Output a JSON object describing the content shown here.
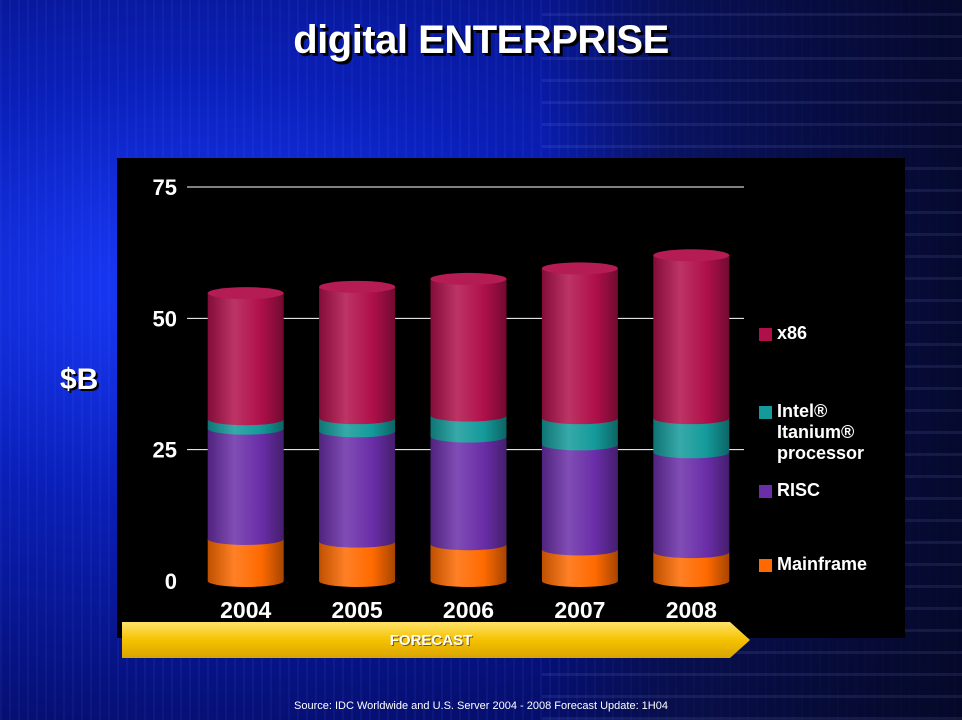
{
  "slide": {
    "title": "digital ENTERPRISE",
    "source": "Source: IDC Worldwide and U.S. Server 2004 - 2008 Forecast Update: 1H04",
    "forecast_label": "FORECAST"
  },
  "chart_data": {
    "type": "bar",
    "stacked": true,
    "ylabel": "$B",
    "ylim": [
      0,
      75
    ],
    "yticks": [
      0,
      25,
      50,
      75
    ],
    "categories": [
      "2004",
      "2005",
      "2006",
      "2007",
      "2008"
    ],
    "series": [
      {
        "name": "Mainframe",
        "color": "#ff6a00",
        "values": [
          8,
          7.5,
          7,
          6,
          5.5
        ]
      },
      {
        "name": "RISC",
        "color": "#6a2ea8",
        "values": [
          21,
          21,
          20.5,
          20,
          19
        ]
      },
      {
        "name": "Intel® Itanium® processor",
        "color": "#149a9a",
        "values": [
          1.8,
          2.5,
          4,
          5,
          6.5
        ]
      },
      {
        "name": "x86",
        "color": "#b0104a",
        "values": [
          24,
          25,
          26,
          28.5,
          31
        ]
      }
    ],
    "legend_order": [
      "x86",
      "Intel® Itanium® processor",
      "RISC",
      "Mainframe"
    ],
    "legend_position": "right",
    "grid": true
  }
}
